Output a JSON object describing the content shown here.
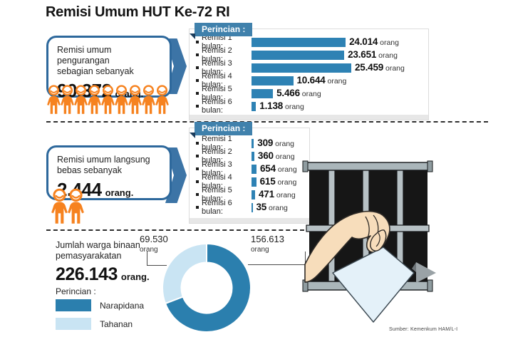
{
  "title": "Remisi Umum HUT Ke-72 RI",
  "source": "Sumber: Kemenkum HAM/L-I",
  "labels": {
    "perincian": "Perincian :",
    "orang": "orang"
  },
  "colors": {
    "box_border": "#2d689c",
    "arrow": "#3c74a6",
    "badge_bg": "#4081ac",
    "badge_fold": "#1a3c5c",
    "bar_blue": "#2e82b4",
    "orange": "#f6821f",
    "narapidana": "#2b7fae",
    "tahanan": "#c9e4f3",
    "dash": "#2f2f2f"
  },
  "section1": {
    "box_line1": "Remisi umum pengurangan",
    "box_line2": "sebagian sebanyak",
    "box_value": "90.372",
    "box_unit": "orang.",
    "people_count": 9
  },
  "section2": {
    "box_line1": "Remisi umum langsung",
    "box_line2": "bebas sebanyak",
    "box_value": "2.444",
    "box_unit": "orang.",
    "people_count": 2
  },
  "section3": {
    "line1": "Jumlah warga binaan",
    "line2": "pemasyarakatan",
    "value": "226.143",
    "unit": "orang.",
    "perincian": "Perincian :",
    "legend": [
      {
        "label": "Narapidana",
        "color": "#2b7fae"
      },
      {
        "label": "Tahanan",
        "color": "#c9e4f3"
      }
    ],
    "callouts": [
      {
        "value": "69.530",
        "unit": "orang"
      },
      {
        "value": "156.613",
        "unit": "orang"
      }
    ]
  },
  "chart_data": [
    {
      "type": "bar",
      "orientation": "horizontal",
      "title": "Perincian : Remisi umum pengurangan sebagian (90.372 orang)",
      "categories": [
        "Remisi 1 bulan:",
        "Remisi 2 bulan:",
        "Remisi 3 bulan:",
        "Remisi 4 bulan:",
        "Remisi 5 bulan:",
        "Remisi 6 bulan:"
      ],
      "values": [
        24014,
        23651,
        25459,
        10644,
        5466,
        1138
      ],
      "value_labels": [
        "24.014",
        "23.651",
        "25.459",
        "10.644",
        "5.466",
        "1.138"
      ],
      "unit": "orang",
      "bar_color": "#2e82b4",
      "xlim": [
        0,
        25459
      ]
    },
    {
      "type": "bar",
      "orientation": "horizontal",
      "title": "Perincian : Remisi umum langsung bebas (2.444 orang)",
      "categories": [
        "Remisi 1 bulan:",
        "Remisi 2 bulan:",
        "Remisi 3 bulan:",
        "Remisi 4 bulan:",
        "Remisi 5 bulan:",
        "Remisi 6 bulan:"
      ],
      "values": [
        309,
        360,
        654,
        615,
        471,
        35
      ],
      "value_labels": [
        "309",
        "360",
        "654",
        "615",
        "471",
        "35"
      ],
      "unit": "orang",
      "bar_color": "#2e82b4",
      "xlim": [
        0,
        654
      ]
    },
    {
      "type": "pie",
      "donut": true,
      "title": "Jumlah warga binaan pemasyarakatan (226.143 orang)",
      "labels": [
        "Narapidana",
        "Tahanan"
      ],
      "values": [
        156613,
        69530
      ],
      "value_labels": [
        "156.613 orang",
        "69.530 orang"
      ],
      "colors": [
        "#2b7fae",
        "#c9e4f3"
      ],
      "total": 226143,
      "legend_position": "left"
    }
  ]
}
